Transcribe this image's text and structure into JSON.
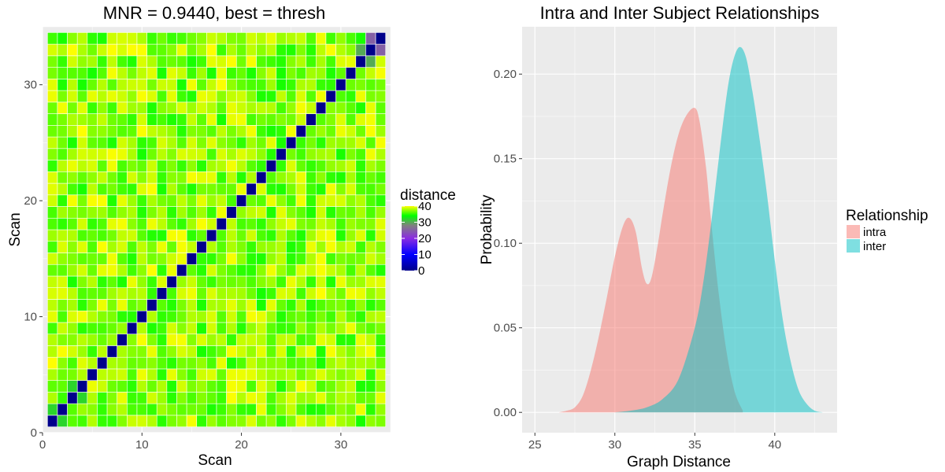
{
  "chart_data": [
    {
      "type": "heatmap",
      "title": "MNR = 0.9440, best = thresh",
      "xlabel": "Scan",
      "ylabel": "Scan",
      "n": 34,
      "xlim": [
        0,
        35
      ],
      "ylim": [
        0,
        35
      ],
      "x_ticks": [
        "0",
        "10",
        "20",
        "30"
      ],
      "y_ticks": [
        "0",
        "10",
        "20",
        "30"
      ],
      "legend": {
        "title": "distance",
        "labels": [
          "40",
          "30",
          "20",
          "10",
          "0"
        ],
        "min": 0,
        "max": 40,
        "colors": [
          "#00008b",
          "#0000ff",
          "#8a2be2",
          "#808080",
          "#00ff00",
          "#ffff00"
        ],
        "position": "right"
      },
      "diagonal_value": 0,
      "near_diagonal": [
        {
          "x": 1,
          "y": 2,
          "value": 32
        },
        {
          "x": 2,
          "y": 1,
          "value": 32
        },
        {
          "x": 3,
          "y": 4,
          "value": 32
        },
        {
          "x": 4,
          "y": 3,
          "value": 32
        },
        {
          "x": 33,
          "y": 34,
          "value": 25
        },
        {
          "x": 34,
          "y": 33,
          "value": 25
        },
        {
          "x": 32,
          "y": 33,
          "value": 30
        },
        {
          "x": 33,
          "y": 32,
          "value": 30
        }
      ],
      "off_diagonal_range": [
        30,
        40
      ],
      "grid": true
    },
    {
      "type": "area",
      "title": "Intra and Inter Subject Relationships",
      "xlabel": "Graph Distance",
      "ylabel": "Probability",
      "xlim": [
        24.2,
        43.9
      ],
      "ylim": [
        -0.012,
        0.228
      ],
      "x_ticks": [
        "25",
        "30",
        "35",
        "40"
      ],
      "y_ticks": [
        "0.00",
        "0.05",
        "0.10",
        "0.15",
        "0.20"
      ],
      "legend": {
        "title": "Relationship",
        "position": "right"
      },
      "series": [
        {
          "name": "intra",
          "color": "#f8766d",
          "x": [
            26.5,
            27,
            27.5,
            28,
            28.5,
            29,
            29.5,
            30,
            30.5,
            30.9,
            31.3,
            31.7,
            32,
            32.3,
            32.7,
            33,
            33.5,
            34,
            34.5,
            35,
            35.3,
            35.7,
            36,
            36.5,
            37,
            37.5,
            38
          ],
          "values": [
            0.0,
            0.001,
            0.003,
            0.01,
            0.025,
            0.045,
            0.068,
            0.092,
            0.11,
            0.115,
            0.107,
            0.085,
            0.076,
            0.08,
            0.1,
            0.118,
            0.145,
            0.165,
            0.176,
            0.18,
            0.172,
            0.145,
            0.115,
            0.07,
            0.035,
            0.012,
            0.001
          ]
        },
        {
          "name": "inter",
          "color": "#00bfc4",
          "x": [
            30,
            31,
            32,
            33,
            34,
            35,
            35.5,
            36,
            36.5,
            37,
            37.4,
            37.8,
            38.2,
            38.6,
            39,
            39.5,
            40,
            40.5,
            41,
            41.5,
            42,
            42.5,
            43
          ],
          "values": [
            0.0,
            0.001,
            0.003,
            0.008,
            0.02,
            0.05,
            0.075,
            0.11,
            0.15,
            0.188,
            0.208,
            0.216,
            0.21,
            0.19,
            0.165,
            0.13,
            0.09,
            0.055,
            0.03,
            0.013,
            0.005,
            0.001,
            0.0
          ]
        }
      ],
      "grid": true
    }
  ]
}
